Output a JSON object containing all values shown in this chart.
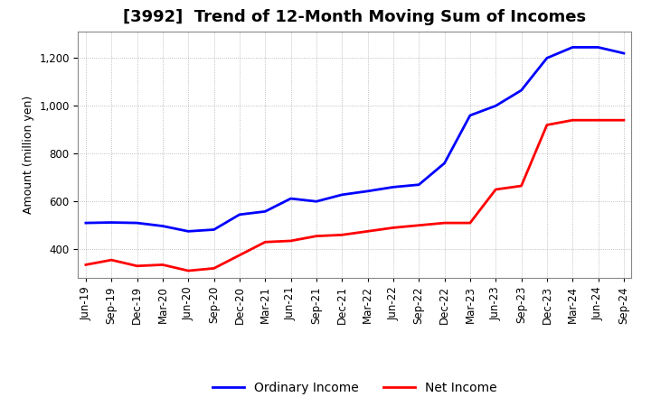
{
  "title": "[3992]  Trend of 12-Month Moving Sum of Incomes",
  "ylabel": "Amount (million yen)",
  "x_labels": [
    "Jun-19",
    "Sep-19",
    "Dec-19",
    "Mar-20",
    "Jun-20",
    "Sep-20",
    "Dec-20",
    "Mar-21",
    "Jun-21",
    "Sep-21",
    "Dec-21",
    "Mar-22",
    "Jun-22",
    "Sep-22",
    "Dec-22",
    "Mar-23",
    "Jun-23",
    "Sep-23",
    "Dec-23",
    "Mar-24",
    "Jun-24",
    "Sep-24"
  ],
  "ordinary_income": [
    510,
    512,
    510,
    497,
    475,
    482,
    545,
    558,
    612,
    600,
    628,
    643,
    660,
    670,
    760,
    960,
    1000,
    1065,
    1200,
    1245,
    1245,
    1220
  ],
  "net_income": [
    335,
    355,
    330,
    335,
    310,
    320,
    375,
    430,
    435,
    455,
    460,
    475,
    490,
    500,
    510,
    510,
    650,
    665,
    920,
    940,
    940,
    940
  ],
  "ordinary_color": "#0000ff",
  "net_color": "#ff0000",
  "ylim_min": 280,
  "ylim_max": 1310,
  "yticks": [
    400,
    600,
    800,
    1000,
    1200
  ],
  "grid_color": "#999999",
  "background_color": "#ffffff",
  "title_fontsize": 13,
  "axis_fontsize": 9,
  "tick_fontsize": 8.5,
  "legend_fontsize": 10
}
